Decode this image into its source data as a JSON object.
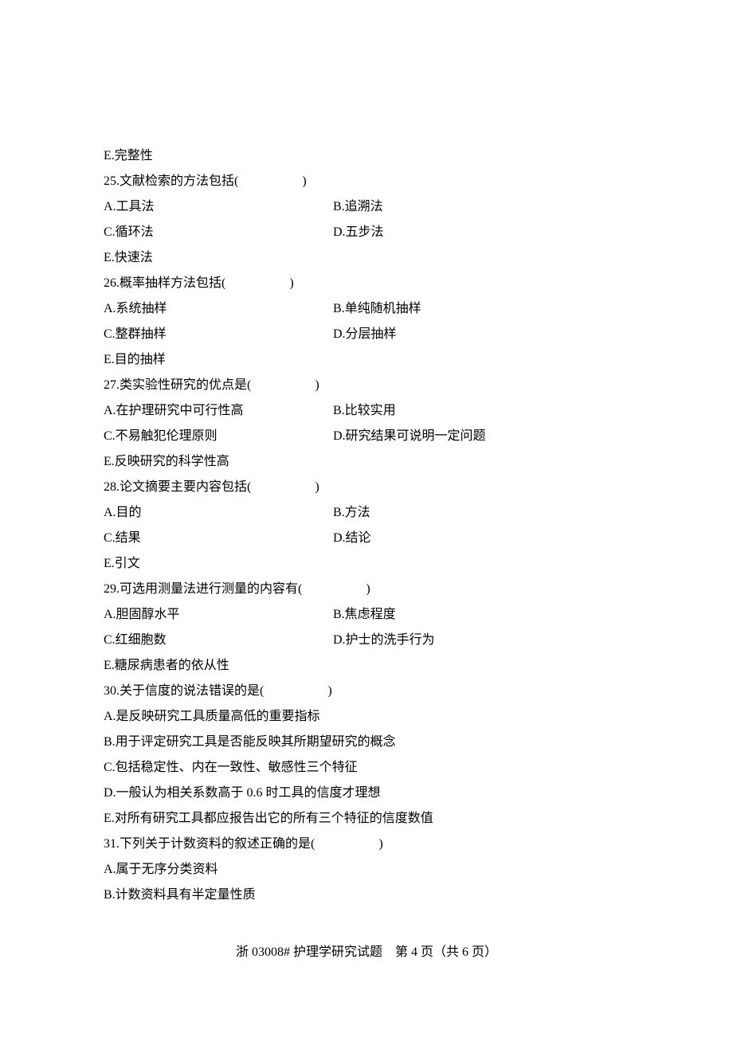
{
  "lines": {
    "e_complete": "E.完整性",
    "q25": "25.文献检索的方法包括(　　　　　)",
    "q25a": "A.工具法",
    "q25b": "B.追溯法",
    "q25c": "C.循环法",
    "q25d": "D.五步法",
    "q25e": "E.快速法",
    "q26": "26.概率抽样方法包括(　　　　　)",
    "q26a": "A.系统抽样",
    "q26b": "B.单纯随机抽样",
    "q26c": "C.整群抽样",
    "q26d": "D.分层抽样",
    "q26e": "E.目的抽样",
    "q27": "27.类实验性研究的优点是(　　　　　)",
    "q27a": "A.在护理研究中可行性高",
    "q27b": "B.比较实用",
    "q27c": "C.不易触犯伦理原则",
    "q27d": "D.研究结果可说明一定问题",
    "q27e": "E.反映研究的科学性高",
    "q28": "28.论文摘要主要内容包括(　　　　　)",
    "q28a": "A.目的",
    "q28b": "B.方法",
    "q28c": "C.结果",
    "q28d": "D.结论",
    "q28e": "E.引文",
    "q29": "29.可选用测量法进行测量的内容有(　　　　　)",
    "q29a": "A.胆固醇水平",
    "q29b": "B.焦虑程度",
    "q29c": "C.红细胞数",
    "q29d": "D.护士的洗手行为",
    "q29e": "E.糖尿病患者的依从性",
    "q30": "30.关于信度的说法错误的是(　　　　　)",
    "q30a": "A.是反映研究工具质量高低的重要指标",
    "q30b": "B.用于评定研究工具是否能反映其所期望研究的概念",
    "q30c": "C.包括稳定性、内在一致性、敏感性三个特征",
    "q30d": "D.一般认为相关系数高于 0.6 时工具的信度才理想",
    "q30e": "E.对所有研究工具都应报告出它的所有三个特征的信度数值",
    "q31": "31.下列关于计数资料的叙述正确的是(　　　　　)",
    "q31a": "A.属于无序分类资料",
    "q31b": "B.计数资料具有半定量性质"
  },
  "footer": "浙 03008# 护理学研究试题　第 4 页（共 6 页）"
}
